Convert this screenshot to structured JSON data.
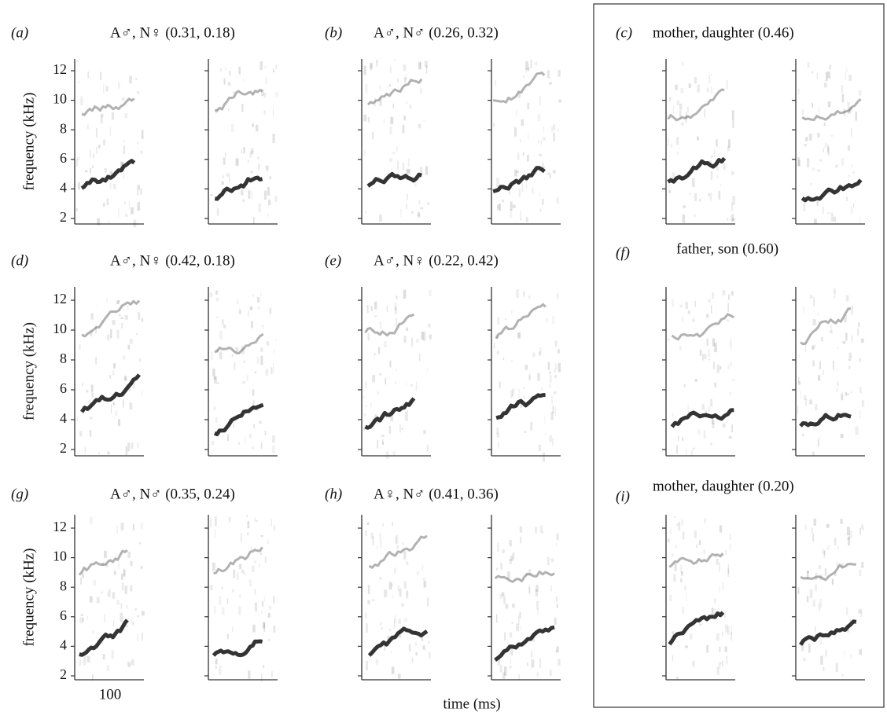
{
  "panels": [
    {
      "label": "(a)",
      "title": "A♂, N♀ (0.31, 0.18)"
    },
    {
      "label": "(b)",
      "title": "A♂, N♂ (0.26, 0.32)"
    },
    {
      "label": "(c)",
      "title": "mother, daughter (0.46)"
    },
    {
      "label": "(d)",
      "title": "A♂, N♀ (0.42, 0.18)"
    },
    {
      "label": "(e)",
      "title": "A♂, N♀ (0.22, 0.42)"
    },
    {
      "label": "(f)",
      "title": "father, son (0.60)"
    },
    {
      "label": "(g)",
      "title": "A♂, N♂ (0.35, 0.24)"
    },
    {
      "label": "(h)",
      "title": "A♀, N♂ (0.41, 0.36)"
    },
    {
      "label": "(i)",
      "title": "mother, daughter (0.20)"
    }
  ],
  "y_axis": {
    "label": "frequency (kHz)",
    "ticks": [
      2,
      4,
      6,
      8,
      10,
      12
    ]
  },
  "x_axis": {
    "label": "time (ms)",
    "scale_label": "100"
  }
}
